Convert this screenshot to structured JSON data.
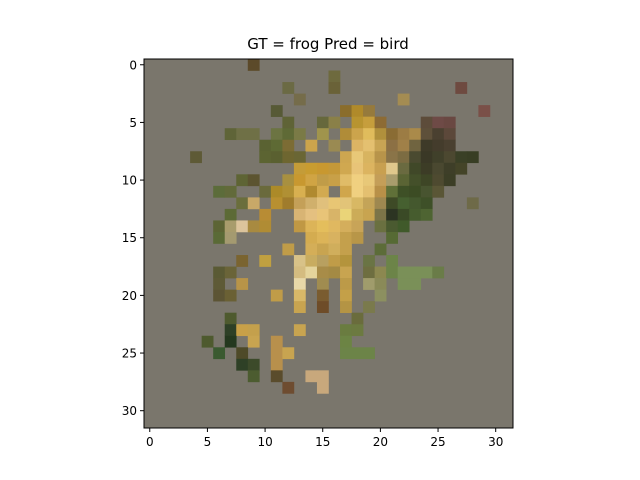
{
  "chart_data": {
    "type": "heatmap",
    "title": "GT = frog Pred = bird",
    "xlabel": "",
    "ylabel": "",
    "grid": false,
    "xlim": [
      -0.5,
      31.5
    ],
    "ylim": [
      31.5,
      -0.5
    ],
    "x_ticks": [
      0,
      5,
      10,
      15,
      20,
      25,
      30
    ],
    "y_ticks": [
      0,
      5,
      10,
      15,
      20,
      25,
      30
    ],
    "background_color": "#7a766c",
    "pixels": [
      {
        "x": 9,
        "y": 0,
        "c": "#5c4a2a"
      },
      {
        "x": 16,
        "y": 1,
        "c": "#6e6a3e"
      },
      {
        "x": 12,
        "y": 2,
        "c": "#6b6a44"
      },
      {
        "x": 16,
        "y": 2,
        "c": "#6a6238"
      },
      {
        "x": 27,
        "y": 2,
        "c": "#6e4a40"
      },
      {
        "x": 13,
        "y": 3,
        "c": "#756c4a"
      },
      {
        "x": 22,
        "y": 3,
        "c": "#a48c52"
      },
      {
        "x": 11,
        "y": 4,
        "c": "#575a36"
      },
      {
        "x": 17,
        "y": 4,
        "c": "#8a6d2c"
      },
      {
        "x": 18,
        "y": 4,
        "c": "#b08a2a"
      },
      {
        "x": 19,
        "y": 4,
        "c": "#967a3c"
      },
      {
        "x": 29,
        "y": 4,
        "c": "#7a5048"
      },
      {
        "x": 12,
        "y": 5,
        "c": "#5f6336"
      },
      {
        "x": 15,
        "y": 5,
        "c": "#66683c"
      },
      {
        "x": 16,
        "y": 5,
        "c": "#8a8048"
      },
      {
        "x": 18,
        "y": 5,
        "c": "#b89430"
      },
      {
        "x": 19,
        "y": 5,
        "c": "#c69e3c"
      },
      {
        "x": 20,
        "y": 5,
        "c": "#8d6b34"
      },
      {
        "x": 24,
        "y": 5,
        "c": "#5d4c3a"
      },
      {
        "x": 25,
        "y": 5,
        "c": "#6e4a46"
      },
      {
        "x": 26,
        "y": 5,
        "c": "#6a4842"
      },
      {
        "x": 7,
        "y": 6,
        "c": "#5f6438"
      },
      {
        "x": 8,
        "y": 6,
        "c": "#6f7046"
      },
      {
        "x": 9,
        "y": 6,
        "c": "#6f7046"
      },
      {
        "x": 11,
        "y": 6,
        "c": "#6c7442"
      },
      {
        "x": 12,
        "y": 6,
        "c": "#5f6a36"
      },
      {
        "x": 13,
        "y": 6,
        "c": "#7a7a46"
      },
      {
        "x": 15,
        "y": 6,
        "c": "#a0944c"
      },
      {
        "x": 17,
        "y": 6,
        "c": "#b08c38"
      },
      {
        "x": 18,
        "y": 6,
        "c": "#cca44c"
      },
      {
        "x": 19,
        "y": 6,
        "c": "#e0bc5c"
      },
      {
        "x": 20,
        "y": 6,
        "c": "#b0903c"
      },
      {
        "x": 21,
        "y": 6,
        "c": "#8a6c34"
      },
      {
        "x": 22,
        "y": 6,
        "c": "#9c7c44"
      },
      {
        "x": 23,
        "y": 6,
        "c": "#aa8a4a"
      },
      {
        "x": 24,
        "y": 6,
        "c": "#5e503a"
      },
      {
        "x": 25,
        "y": 6,
        "c": "#4a4030"
      },
      {
        "x": 26,
        "y": 6,
        "c": "#5c483a"
      },
      {
        "x": 10,
        "y": 7,
        "c": "#5a6232"
      },
      {
        "x": 11,
        "y": 7,
        "c": "#5e6a34"
      },
      {
        "x": 12,
        "y": 7,
        "c": "#7c6c34"
      },
      {
        "x": 14,
        "y": 7,
        "c": "#cca44c"
      },
      {
        "x": 16,
        "y": 7,
        "c": "#9a8a52"
      },
      {
        "x": 18,
        "y": 7,
        "c": "#dcb464"
      },
      {
        "x": 19,
        "y": 7,
        "c": "#e4c070"
      },
      {
        "x": 20,
        "y": 7,
        "c": "#c8a454"
      },
      {
        "x": 21,
        "y": 7,
        "c": "#8c7044"
      },
      {
        "x": 22,
        "y": 7,
        "c": "#a08048"
      },
      {
        "x": 23,
        "y": 7,
        "c": "#706440"
      },
      {
        "x": 24,
        "y": 7,
        "c": "#3e3a28"
      },
      {
        "x": 25,
        "y": 7,
        "c": "#443c2c"
      },
      {
        "x": 26,
        "y": 7,
        "c": "#4a4030"
      },
      {
        "x": 4,
        "y": 8,
        "c": "#5e5a36"
      },
      {
        "x": 10,
        "y": 8,
        "c": "#5c6432"
      },
      {
        "x": 11,
        "y": 8,
        "c": "#5a6030"
      },
      {
        "x": 12,
        "y": 8,
        "c": "#6e6630"
      },
      {
        "x": 13,
        "y": 8,
        "c": "#6a6634"
      },
      {
        "x": 17,
        "y": 8,
        "c": "#cda650"
      },
      {
        "x": 18,
        "y": 8,
        "c": "#e8c878"
      },
      {
        "x": 19,
        "y": 8,
        "c": "#d8b460"
      },
      {
        "x": 20,
        "y": 8,
        "c": "#b8944a"
      },
      {
        "x": 21,
        "y": 8,
        "c": "#8a7448"
      },
      {
        "x": 22,
        "y": 8,
        "c": "#7c6c42"
      },
      {
        "x": 23,
        "y": 8,
        "c": "#4a4a30"
      },
      {
        "x": 24,
        "y": 8,
        "c": "#3a3826"
      },
      {
        "x": 25,
        "y": 8,
        "c": "#40402a"
      },
      {
        "x": 26,
        "y": 8,
        "c": "#4c4830"
      },
      {
        "x": 27,
        "y": 8,
        "c": "#3a4026"
      },
      {
        "x": 28,
        "y": 8,
        "c": "#383e24"
      },
      {
        "x": 13,
        "y": 9,
        "c": "#c49c38"
      },
      {
        "x": 14,
        "y": 9,
        "c": "#c89c30"
      },
      {
        "x": 15,
        "y": 9,
        "c": "#c89830"
      },
      {
        "x": 16,
        "y": 9,
        "c": "#c49838"
      },
      {
        "x": 17,
        "y": 9,
        "c": "#d0a850"
      },
      {
        "x": 18,
        "y": 9,
        "c": "#e8c478"
      },
      {
        "x": 19,
        "y": 9,
        "c": "#dcb460"
      },
      {
        "x": 20,
        "y": 9,
        "c": "#c8a050"
      },
      {
        "x": 21,
        "y": 9,
        "c": "#e0c88c"
      },
      {
        "x": 22,
        "y": 9,
        "c": "#6a6a40"
      },
      {
        "x": 23,
        "y": 9,
        "c": "#404828"
      },
      {
        "x": 24,
        "y": 9,
        "c": "#3c3c26"
      },
      {
        "x": 25,
        "y": 9,
        "c": "#4a4830"
      },
      {
        "x": 26,
        "y": 9,
        "c": "#3e3e28"
      },
      {
        "x": 27,
        "y": 9,
        "c": "#444428"
      },
      {
        "x": 8,
        "y": 10,
        "c": "#5e6434"
      },
      {
        "x": 9,
        "y": 10,
        "c": "#5c5430"
      },
      {
        "x": 12,
        "y": 10,
        "c": "#a89040"
      },
      {
        "x": 13,
        "y": 10,
        "c": "#c89830"
      },
      {
        "x": 14,
        "y": 10,
        "c": "#d0a444"
      },
      {
        "x": 15,
        "y": 10,
        "c": "#c09c48"
      },
      {
        "x": 16,
        "y": 10,
        "c": "#c8a048"
      },
      {
        "x": 17,
        "y": 10,
        "c": "#e0bc68"
      },
      {
        "x": 18,
        "y": 10,
        "c": "#f0d080"
      },
      {
        "x": 19,
        "y": 10,
        "c": "#e8c878"
      },
      {
        "x": 20,
        "y": 10,
        "c": "#c49e58"
      },
      {
        "x": 21,
        "y": 10,
        "c": "#a89c6c"
      },
      {
        "x": 22,
        "y": 10,
        "c": "#5a6434"
      },
      {
        "x": 23,
        "y": 10,
        "c": "#44502a"
      },
      {
        "x": 24,
        "y": 10,
        "c": "#3e4626"
      },
      {
        "x": 25,
        "y": 10,
        "c": "#4e4a30"
      },
      {
        "x": 26,
        "y": 10,
        "c": "#3c3e26"
      },
      {
        "x": 6,
        "y": 11,
        "c": "#5c6c3a"
      },
      {
        "x": 7,
        "y": 11,
        "c": "#626a3a"
      },
      {
        "x": 10,
        "y": 11,
        "c": "#6a6a3c"
      },
      {
        "x": 11,
        "y": 11,
        "c": "#ac8a28"
      },
      {
        "x": 12,
        "y": 11,
        "c": "#b09034"
      },
      {
        "x": 13,
        "y": 11,
        "c": "#d8b050"
      },
      {
        "x": 14,
        "y": 11,
        "c": "#b08a30"
      },
      {
        "x": 15,
        "y": 11,
        "c": "#d2aa50"
      },
      {
        "x": 17,
        "y": 11,
        "c": "#d0a64c"
      },
      {
        "x": 18,
        "y": 11,
        "c": "#f0d080"
      },
      {
        "x": 19,
        "y": 11,
        "c": "#e4c070"
      },
      {
        "x": 20,
        "y": 11,
        "c": "#b89048"
      },
      {
        "x": 21,
        "y": 11,
        "c": "#607038"
      },
      {
        "x": 22,
        "y": 11,
        "c": "#3e5026"
      },
      {
        "x": 23,
        "y": 11,
        "c": "#3c4c24"
      },
      {
        "x": 24,
        "y": 11,
        "c": "#485430"
      },
      {
        "x": 25,
        "y": 11,
        "c": "#5a5636"
      },
      {
        "x": 8,
        "y": 12,
        "c": "#6a6e3c"
      },
      {
        "x": 9,
        "y": 12,
        "c": "#c8a868"
      },
      {
        "x": 11,
        "y": 12,
        "c": "#b89030"
      },
      {
        "x": 12,
        "y": 12,
        "c": "#a07c2c"
      },
      {
        "x": 13,
        "y": 12,
        "c": "#c4a058"
      },
      {
        "x": 14,
        "y": 12,
        "c": "#d0b06c"
      },
      {
        "x": 15,
        "y": 12,
        "c": "#e0c07c"
      },
      {
        "x": 16,
        "y": 12,
        "c": "#e8c674"
      },
      {
        "x": 17,
        "y": 12,
        "c": "#e2c478"
      },
      {
        "x": 18,
        "y": 12,
        "c": "#d8b864"
      },
      {
        "x": 19,
        "y": 12,
        "c": "#c4a458"
      },
      {
        "x": 20,
        "y": 12,
        "c": "#9e8850"
      },
      {
        "x": 21,
        "y": 12,
        "c": "#3e4a26"
      },
      {
        "x": 22,
        "y": 12,
        "c": "#466030"
      },
      {
        "x": 23,
        "y": 12,
        "c": "#44582e"
      },
      {
        "x": 24,
        "y": 12,
        "c": "#3e5028"
      },
      {
        "x": 28,
        "y": 12,
        "c": "#6e6a48"
      },
      {
        "x": 7,
        "y": 13,
        "c": "#5c6a36"
      },
      {
        "x": 10,
        "y": 13,
        "c": "#b88c34"
      },
      {
        "x": 13,
        "y": 13,
        "c": "#d8b474"
      },
      {
        "x": 14,
        "y": 13,
        "c": "#e4c080"
      },
      {
        "x": 15,
        "y": 13,
        "c": "#e8c478"
      },
      {
        "x": 16,
        "y": 13,
        "c": "#d8b468"
      },
      {
        "x": 17,
        "y": 13,
        "c": "#ead478"
      },
      {
        "x": 18,
        "y": 13,
        "c": "#ccac58"
      },
      {
        "x": 19,
        "y": 13,
        "c": "#c8a450"
      },
      {
        "x": 20,
        "y": 13,
        "c": "#7c7448"
      },
      {
        "x": 21,
        "y": 13,
        "c": "#2c3422"
      },
      {
        "x": 22,
        "y": 13,
        "c": "#3a4a26"
      },
      {
        "x": 23,
        "y": 13,
        "c": "#465c2e"
      },
      {
        "x": 24,
        "y": 13,
        "c": "#4e6432"
      },
      {
        "x": 6,
        "y": 14,
        "c": "#5c6434"
      },
      {
        "x": 7,
        "y": 14,
        "c": "#a89c6c"
      },
      {
        "x": 8,
        "y": 14,
        "c": "#dcc49c"
      },
      {
        "x": 9,
        "y": 14,
        "c": "#a88a40"
      },
      {
        "x": 10,
        "y": 14,
        "c": "#b08c34"
      },
      {
        "x": 13,
        "y": 14,
        "c": "#c09844"
      },
      {
        "x": 14,
        "y": 14,
        "c": "#dcb458"
      },
      {
        "x": 15,
        "y": 14,
        "c": "#e4be5c"
      },
      {
        "x": 16,
        "y": 14,
        "c": "#e0b860"
      },
      {
        "x": 17,
        "y": 14,
        "c": "#d4ae5c"
      },
      {
        "x": 18,
        "y": 14,
        "c": "#c8a458"
      },
      {
        "x": 20,
        "y": 14,
        "c": "#6a7040"
      },
      {
        "x": 21,
        "y": 14,
        "c": "#4a5a30"
      },
      {
        "x": 22,
        "y": 14,
        "c": "#405a2a"
      },
      {
        "x": 6,
        "y": 15,
        "c": "#5a6a36"
      },
      {
        "x": 7,
        "y": 15,
        "c": "#a49a70"
      },
      {
        "x": 14,
        "y": 15,
        "c": "#d4ac50"
      },
      {
        "x": 15,
        "y": 15,
        "c": "#dcb458"
      },
      {
        "x": 16,
        "y": 15,
        "c": "#d8b260"
      },
      {
        "x": 17,
        "y": 15,
        "c": "#c4a04c"
      },
      {
        "x": 18,
        "y": 15,
        "c": "#b89648"
      },
      {
        "x": 21,
        "y": 15,
        "c": "#566a34"
      },
      {
        "x": 12,
        "y": 16,
        "c": "#c09c48"
      },
      {
        "x": 14,
        "y": 16,
        "c": "#d4ae58"
      },
      {
        "x": 15,
        "y": 16,
        "c": "#c8a450"
      },
      {
        "x": 16,
        "y": 16,
        "c": "#d0ae5c"
      },
      {
        "x": 17,
        "y": 16,
        "c": "#c4a04c"
      },
      {
        "x": 20,
        "y": 16,
        "c": "#5c6c38"
      },
      {
        "x": 8,
        "y": 17,
        "c": "#7a6430"
      },
      {
        "x": 10,
        "y": 17,
        "c": "#c0a040"
      },
      {
        "x": 13,
        "y": 17,
        "c": "#d8c288"
      },
      {
        "x": 14,
        "y": 17,
        "c": "#c8ac60"
      },
      {
        "x": 15,
        "y": 17,
        "c": "#b8a060"
      },
      {
        "x": 16,
        "y": 17,
        "c": "#c09c48"
      },
      {
        "x": 17,
        "y": 17,
        "c": "#b4943c"
      },
      {
        "x": 19,
        "y": 17,
        "c": "#6a7444"
      },
      {
        "x": 21,
        "y": 17,
        "c": "#6c8448"
      },
      {
        "x": 6,
        "y": 18,
        "c": "#5a5a34"
      },
      {
        "x": 7,
        "y": 18,
        "c": "#6a6438"
      },
      {
        "x": 13,
        "y": 18,
        "c": "#d4bc80"
      },
      {
        "x": 14,
        "y": 18,
        "c": "#e4d49c"
      },
      {
        "x": 15,
        "y": 18,
        "c": "#a88c48"
      },
      {
        "x": 16,
        "y": 18,
        "c": "#a48a44"
      },
      {
        "x": 17,
        "y": 18,
        "c": "#c8a450"
      },
      {
        "x": 19,
        "y": 18,
        "c": "#6e6e40"
      },
      {
        "x": 20,
        "y": 18,
        "c": "#8c8850"
      },
      {
        "x": 21,
        "y": 18,
        "c": "#6c8448"
      },
      {
        "x": 22,
        "y": 18,
        "c": "#7a9058"
      },
      {
        "x": 23,
        "y": 18,
        "c": "#7a9058"
      },
      {
        "x": 24,
        "y": 18,
        "c": "#7a9058"
      },
      {
        "x": 25,
        "y": 18,
        "c": "#6a7c48"
      },
      {
        "x": 6,
        "y": 19,
        "c": "#5e5a36"
      },
      {
        "x": 8,
        "y": 19,
        "c": "#b89448"
      },
      {
        "x": 13,
        "y": 19,
        "c": "#e8d8a8"
      },
      {
        "x": 15,
        "y": 19,
        "c": "#a08c50"
      },
      {
        "x": 17,
        "y": 19,
        "c": "#bc9a48"
      },
      {
        "x": 19,
        "y": 19,
        "c": "#a09c6c"
      },
      {
        "x": 20,
        "y": 19,
        "c": "#8a8a58"
      },
      {
        "x": 22,
        "y": 19,
        "c": "#7a9058"
      },
      {
        "x": 23,
        "y": 19,
        "c": "#7a9058"
      },
      {
        "x": 6,
        "y": 20,
        "c": "#5c5434"
      },
      {
        "x": 7,
        "y": 20,
        "c": "#6a6034"
      },
      {
        "x": 11,
        "y": 20,
        "c": "#c09c48"
      },
      {
        "x": 13,
        "y": 20,
        "c": "#d8b868"
      },
      {
        "x": 15,
        "y": 20,
        "c": "#7a5c30"
      },
      {
        "x": 17,
        "y": 20,
        "c": "#c4a048"
      },
      {
        "x": 20,
        "y": 20,
        "c": "#8c9060"
      },
      {
        "x": 13,
        "y": 21,
        "c": "#c8a450"
      },
      {
        "x": 15,
        "y": 21,
        "c": "#6e4c28"
      },
      {
        "x": 17,
        "y": 21,
        "c": "#b49444"
      },
      {
        "x": 19,
        "y": 21,
        "c": "#7a7a4c"
      },
      {
        "x": 7,
        "y": 22,
        "c": "#4e5a2e"
      },
      {
        "x": 18,
        "y": 22,
        "c": "#6a6c3c"
      },
      {
        "x": 7,
        "y": 23,
        "c": "#2e4026"
      },
      {
        "x": 8,
        "y": 23,
        "c": "#c8a048"
      },
      {
        "x": 9,
        "y": 23,
        "c": "#c4a04c"
      },
      {
        "x": 13,
        "y": 23,
        "c": "#c8a450"
      },
      {
        "x": 17,
        "y": 23,
        "c": "#6a7c40"
      },
      {
        "x": 18,
        "y": 23,
        "c": "#6c7a40"
      },
      {
        "x": 5,
        "y": 24,
        "c": "#4e5a2e"
      },
      {
        "x": 7,
        "y": 24,
        "c": "#24381e"
      },
      {
        "x": 9,
        "y": 24,
        "c": "#c8a450"
      },
      {
        "x": 11,
        "y": 24,
        "c": "#b8904c"
      },
      {
        "x": 17,
        "y": 24,
        "c": "#6c8444"
      },
      {
        "x": 6,
        "y": 25,
        "c": "#3a5a30"
      },
      {
        "x": 8,
        "y": 25,
        "c": "#4e4a28"
      },
      {
        "x": 11,
        "y": 25,
        "c": "#b8904c"
      },
      {
        "x": 12,
        "y": 25,
        "c": "#c8a450"
      },
      {
        "x": 17,
        "y": 25,
        "c": "#6c8448"
      },
      {
        "x": 18,
        "y": 25,
        "c": "#6c8448"
      },
      {
        "x": 19,
        "y": 25,
        "c": "#6c8448"
      },
      {
        "x": 8,
        "y": 26,
        "c": "#2e4026"
      },
      {
        "x": 9,
        "y": 26,
        "c": "#3c4a2a"
      },
      {
        "x": 11,
        "y": 26,
        "c": "#b8904c"
      },
      {
        "x": 9,
        "y": 27,
        "c": "#4c5c30"
      },
      {
        "x": 11,
        "y": 27,
        "c": "#5a4c2c"
      },
      {
        "x": 14,
        "y": 27,
        "c": "#c8a87c"
      },
      {
        "x": 15,
        "y": 27,
        "c": "#c8a87c"
      },
      {
        "x": 12,
        "y": 28,
        "c": "#6e4c30"
      },
      {
        "x": 15,
        "y": 28,
        "c": "#c8a87c"
      }
    ]
  }
}
